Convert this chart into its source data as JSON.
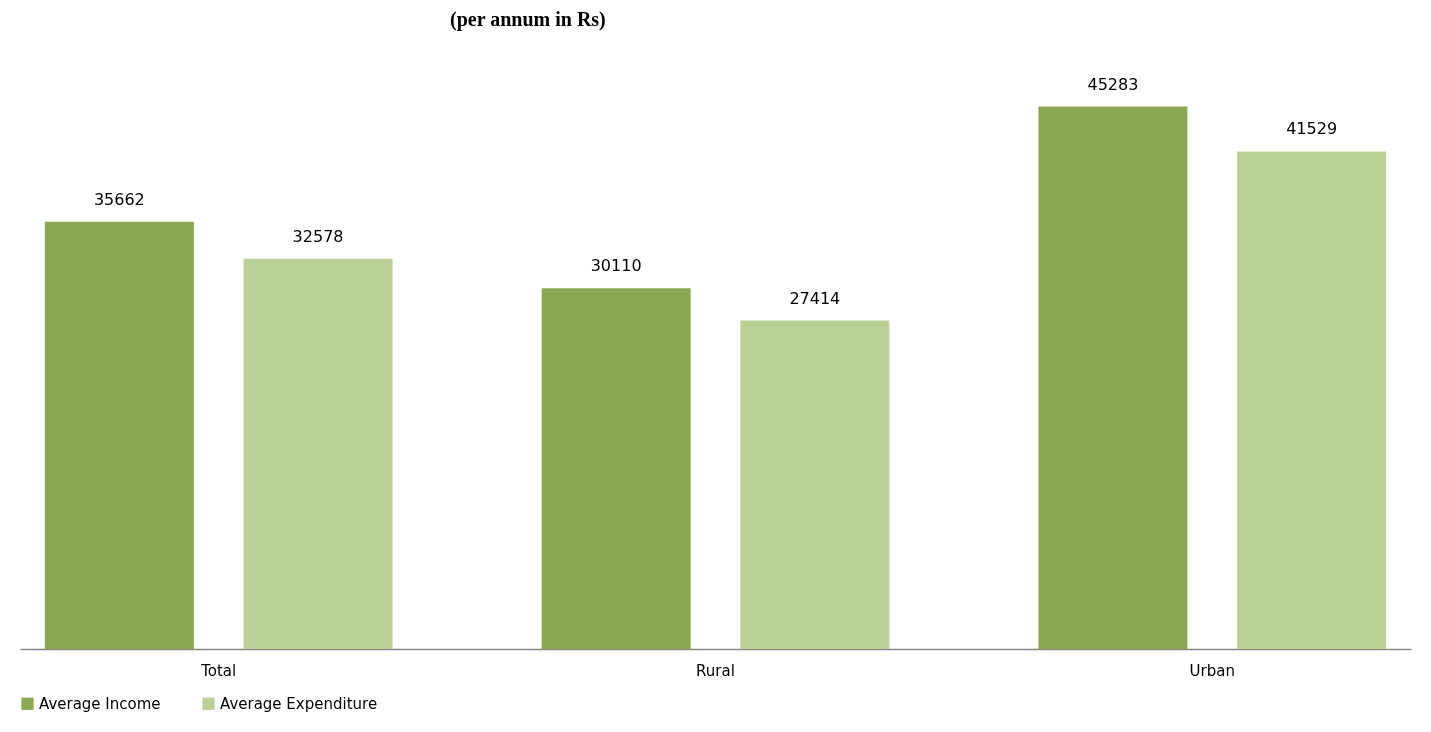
{
  "chart_data": {
    "type": "bar",
    "title": "(per annum in Rs)",
    "categories": [
      "Total",
      "Rural",
      "Urban"
    ],
    "series": [
      {
        "name": "Average Income",
        "color": "#8ba753",
        "values": [
          35662,
          30110,
          45283
        ]
      },
      {
        "name": "Average Expenditure",
        "color": "#bad097",
        "values": [
          32578,
          27414,
          41529
        ]
      }
    ],
    "data_labels": true,
    "legend": "bottom",
    "grid": false
  }
}
